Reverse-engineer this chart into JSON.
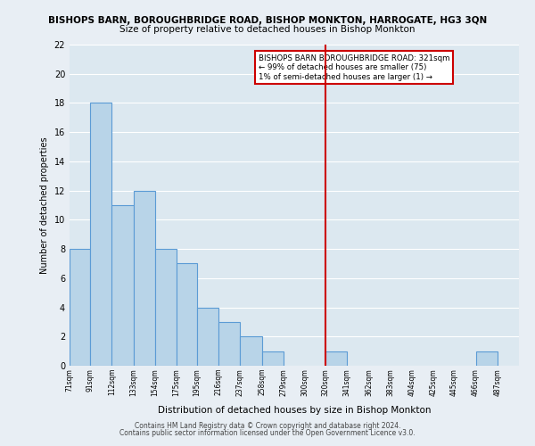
{
  "title_line1": "BISHOPS BARN, BOROUGHBRIDGE ROAD, BISHOP MONKTON, HARROGATE, HG3 3QN",
  "title_line2": "Size of property relative to detached houses in Bishop Monkton",
  "xlabel": "Distribution of detached houses by size in Bishop Monkton",
  "ylabel": "Number of detached properties",
  "bar_left_edges": [
    71,
    91,
    112,
    133,
    154,
    175,
    195,
    216,
    237,
    258,
    279,
    300,
    320,
    341,
    362,
    383,
    404,
    425,
    445,
    466
  ],
  "bar_widths": [
    20,
    21,
    21,
    21,
    21,
    20,
    21,
    21,
    21,
    21,
    21,
    20,
    21,
    21,
    21,
    21,
    21,
    20,
    21,
    21
  ],
  "bar_heights": [
    8,
    18,
    11,
    12,
    8,
    7,
    4,
    3,
    2,
    1,
    0,
    0,
    1,
    0,
    0,
    0,
    0,
    0,
    0,
    1
  ],
  "bar_color": "#b8d4e8",
  "bar_edge_color": "#5b9bd5",
  "tick_labels": [
    "71sqm",
    "91sqm",
    "112sqm",
    "133sqm",
    "154sqm",
    "175sqm",
    "195sqm",
    "216sqm",
    "237sqm",
    "258sqm",
    "279sqm",
    "300sqm",
    "320sqm",
    "341sqm",
    "362sqm",
    "383sqm",
    "404sqm",
    "425sqm",
    "445sqm",
    "466sqm",
    "487sqm"
  ],
  "ylim": [
    0,
    22
  ],
  "yticks": [
    0,
    2,
    4,
    6,
    8,
    10,
    12,
    14,
    16,
    18,
    20,
    22
  ],
  "vline_x": 320,
  "vline_color": "#cc0000",
  "annotation_title": "BISHOPS BARN BOROUGHBRIDGE ROAD: 321sqm",
  "annotation_line1": "← 99% of detached houses are smaller (75)",
  "annotation_line2": "1% of semi-detached houses are larger (1) →",
  "annotation_box_color": "#ffffff",
  "annotation_box_edge_color": "#cc0000",
  "bg_color": "#e8eef4",
  "plot_bg_color": "#dce8f0",
  "grid_color": "#ffffff",
  "footnote_line1": "Contains HM Land Registry data © Crown copyright and database right 2024.",
  "footnote_line2": "Contains public sector information licensed under the Open Government Licence v3.0."
}
